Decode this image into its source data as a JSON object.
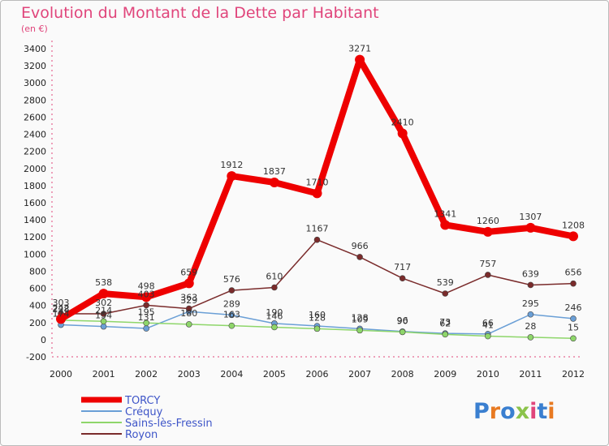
{
  "chart_data": {
    "type": "line",
    "title": "Evolution du Montant de la Dette par Habitant",
    "subtitle": "(en €)",
    "xlabel": "",
    "ylabel": "",
    "x": [
      "2000",
      "2001",
      "2002",
      "2003",
      "2004",
      "2005",
      "2006",
      "2007",
      "2008",
      "2009",
      "2010",
      "2011",
      "2012"
    ],
    "ylim": [
      -200,
      3400
    ],
    "yticks": [
      -200,
      0,
      200,
      400,
      600,
      800,
      1000,
      1200,
      1400,
      1600,
      1800,
      2000,
      2200,
      2400,
      2600,
      2800,
      3000,
      3200,
      3400
    ],
    "grid": false,
    "legend": "bottom-left",
    "series": [
      {
        "name": "TORCY",
        "color": "#ee0000",
        "width": 8,
        "marker": 6,
        "values": [
          242,
          538,
          498,
          659,
          1912,
          1837,
          1710,
          3271,
          2410,
          1341,
          1260,
          1307,
          1208
        ],
        "labels": [
          "242",
          "538",
          "498",
          "659",
          "1912",
          "1837",
          "1710",
          "3271",
          "2410",
          "1341",
          "1260",
          "1307",
          "1208"
        ]
      },
      {
        "name": "Créquy",
        "color": "#6a9fd6",
        "width": 1.5,
        "marker": 3.5,
        "values": [
          174,
          154,
          131,
          329,
          289,
          190,
          160,
          128,
          96,
          73,
          66,
          295,
          246
        ],
        "labels": [
          "174",
          "154",
          "131",
          "329",
          "289",
          "190",
          "160",
          "128",
          "96",
          "73",
          "66",
          "295",
          "246"
        ]
      },
      {
        "name": "Sains-lès-Fressin",
        "color": "#8ed66a",
        "width": 1.5,
        "marker": 3.5,
        "values": [
          228,
          214,
          195,
          180,
          163,
          146,
          128,
          109,
          90,
          62,
          41,
          28,
          15
        ],
        "labels": [
          "228",
          "214",
          "195",
          "180",
          "163",
          "146",
          "128",
          "109",
          "90",
          "62",
          "41",
          "28",
          "15"
        ]
      },
      {
        "name": "Royon",
        "color": "#7a2b2b",
        "width": 1.5,
        "marker": 3.5,
        "values": [
          303,
          302,
          403,
          363,
          576,
          610,
          1167,
          966,
          717,
          539,
          757,
          639,
          656
        ],
        "labels": [
          "303",
          "302",
          "403",
          "363",
          "576",
          "610",
          "1167",
          "966",
          "717",
          "539",
          "757",
          "639",
          "656"
        ]
      }
    ]
  },
  "logo": {
    "text": "Proxiti"
  }
}
